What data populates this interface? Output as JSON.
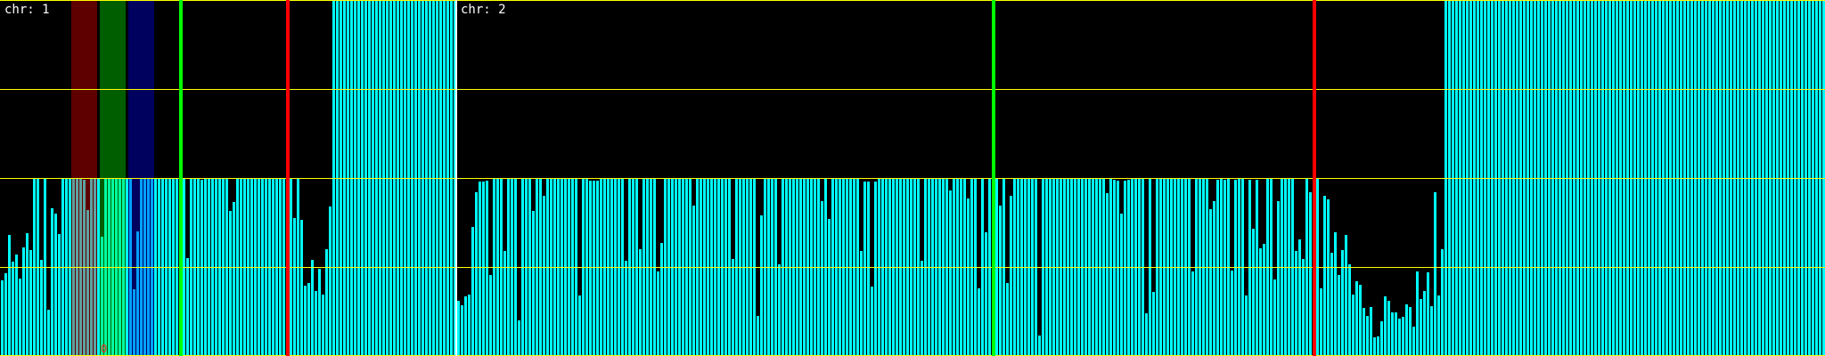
{
  "colors": {
    "background": "#000000",
    "bar": "#00ffff",
    "gridline": "#ffff00",
    "divider": "#ffffff",
    "green_marker": "#00ff00",
    "red_marker": "#ff0000",
    "band_red": "rgba(255,0,0,0.37)",
    "band_green": "rgba(0,255,0,0.37)",
    "band_blue": "rgba(0,0,255,0.37)",
    "marker_text": "#ff2020"
  },
  "chromosomes": [
    {
      "label": "chr: 1",
      "values": [
        0.85,
        0.93,
        1.36,
        1.06,
        1.14,
        0.87,
        1.22,
        1.38,
        1.19,
        2,
        2,
        1.08,
        2,
        0.52,
        1.66,
        1.6,
        1.37,
        2,
        2,
        2,
        2,
        2,
        2,
        1.98,
        1.64,
        2,
        2,
        2,
        1.34,
        2,
        2,
        2,
        2,
        2,
        2,
        2,
        2,
        0.75,
        1.4,
        2,
        2,
        2,
        2,
        2,
        2,
        2,
        2,
        2,
        2,
        2,
        2,
        2,
        1.1,
        2,
        2,
        2,
        1.98,
        2,
        2,
        2,
        2,
        2,
        2,
        2,
        1.63,
        1.73,
        2,
        2,
        2,
        2,
        2,
        2,
        2,
        2,
        2,
        2,
        2,
        2,
        2,
        2,
        2,
        2,
        1.55,
        2,
        1.53,
        0.79,
        0.82,
        1.08,
        0.73,
        0.98,
        0.69,
        1.2,
        1.68,
        4,
        4,
        4,
        4,
        4,
        4,
        4,
        4,
        4,
        4,
        4,
        4,
        4,
        4,
        4,
        4,
        4,
        4,
        4,
        4,
        4,
        4,
        4,
        4,
        4,
        4,
        4,
        4,
        4,
        4,
        4,
        4,
        4,
        4,
        4
      ],
      "marker_text": "0"
    },
    {
      "label": "chr: 2",
      "values": [
        0.62,
        0.57,
        0.67,
        0.69,
        1.45,
        1.84,
        1.96,
        1.96,
        1.97,
        0.91,
        2,
        2,
        2,
        1.18,
        2,
        2,
        2,
        0.4,
        2,
        2,
        2,
        1.63,
        2,
        2,
        1.8,
        2,
        2,
        2,
        2,
        2,
        2,
        2,
        2,
        2,
        0.68,
        2,
        2,
        1.97,
        1.97,
        1.97,
        2,
        2,
        2,
        2,
        2,
        2,
        2,
        1.07,
        2,
        2,
        2,
        1.2,
        2,
        2,
        2,
        2,
        0.95,
        1.27,
        2,
        2,
        2,
        2,
        2,
        2,
        2,
        2,
        1.69,
        2,
        2,
        2,
        2,
        2,
        2,
        2,
        2,
        2,
        2,
        1.09,
        2,
        2,
        2,
        2,
        2,
        2,
        0.45,
        1.58,
        2,
        2,
        2,
        2,
        1.03,
        2,
        2,
        2,
        2,
        2,
        2,
        2,
        2,
        2,
        2,
        2,
        1.74,
        2,
        1.54,
        2,
        2,
        2,
        2,
        2,
        2,
        2,
        2,
        1.18,
        1.96,
        1.96,
        0.78,
        1.96,
        2,
        2,
        2,
        2,
        2,
        2,
        2,
        2,
        2,
        2,
        2,
        2,
        1.07,
        2,
        2,
        2,
        2,
        2,
        2,
        2,
        1.86,
        2,
        2,
        2,
        2,
        1.77,
        2,
        2,
        0.76,
        2,
        1.39,
        2,
        2,
        2,
        1.69,
        2,
        0.82,
        1.8,
        2,
        2,
        2,
        2,
        2,
        2,
        2,
        0.23,
        2,
        2,
        2,
        2,
        2,
        2,
        2,
        2,
        2,
        2,
        2,
        2,
        2,
        2,
        2,
        2,
        2,
        2,
        1.83,
        2,
        1.98,
        1.97,
        1.6,
        1.97,
        1.98,
        2,
        2,
        2,
        2,
        0.48,
        2,
        0.72,
        2,
        2,
        2,
        2,
        2,
        2,
        2,
        2,
        2,
        2,
        0.95,
        2,
        2,
        2,
        2,
        1.65,
        1.74,
        1.98,
        2,
        1.98,
        2,
        0.96,
        1.98,
        2,
        2,
        0.68,
        1.98,
        1.43,
        1.98,
        1.21,
        1.26,
        2,
        2,
        0.86,
        1.74,
        2,
        2,
        2,
        2,
        1.18,
        1.31,
        1.09,
        2,
        1.84,
        2,
        2,
        0.76,
        1.8,
        1.76,
        1.16,
        1.39,
        0.91,
        1.19,
        1.36,
        1.03,
        0.69,
        0.84,
        0.8,
        0.54,
        0.45,
        0.55,
        0.21,
        0.22,
        0.39,
        0.67,
        0.62,
        0.49,
        0.49,
        0.42,
        0.44,
        0.58,
        0.55,
        0.33,
        0.95,
        0.64,
        0.73,
        0.94,
        0.56,
        1.84,
        0.68,
        1.2,
        4,
        4,
        4,
        4,
        4,
        4,
        4,
        4,
        4,
        4,
        4,
        4,
        4,
        4,
        4,
        4,
        4,
        4,
        4,
        4,
        4,
        4,
        4,
        4,
        4,
        4,
        4,
        4,
        4,
        4,
        4,
        4,
        4,
        4,
        4,
        4,
        4,
        4,
        4,
        4,
        4,
        4,
        4,
        4,
        4,
        4,
        4,
        4,
        4,
        4,
        4,
        4,
        4,
        4,
        4,
        4,
        4,
        4,
        4,
        4,
        4,
        4,
        4,
        4,
        4,
        4,
        4,
        4,
        4,
        4,
        4,
        4,
        4,
        4,
        4,
        4,
        4,
        4,
        4,
        4,
        4,
        4,
        4,
        4,
        4,
        4,
        4,
        4,
        4,
        4,
        4,
        4,
        4,
        4,
        4,
        4,
        4,
        4,
        4,
        4,
        4,
        4,
        4,
        4,
        4,
        4,
        4
      ]
    }
  ]
}
